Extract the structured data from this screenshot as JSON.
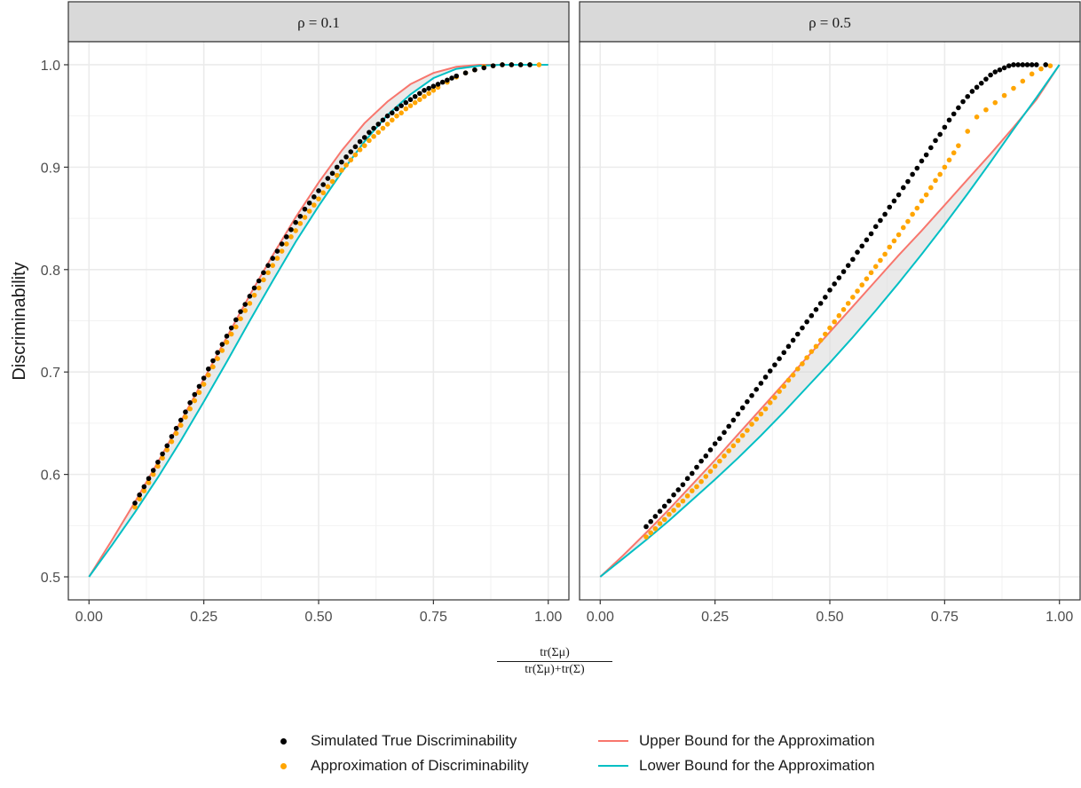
{
  "chart_data": {
    "type": "scatter",
    "ylabel": "Discriminability",
    "xlabel_numerator": "tr(Σμ)",
    "xlabel_denominator": "tr(Σμ)+tr(Σ)",
    "xlim": [
      0.0,
      1.0
    ],
    "ylim": [
      0.5,
      1.0
    ],
    "x_ticks": [
      "0.00",
      "0.25",
      "0.50",
      "0.75",
      "1.00"
    ],
    "y_ticks": [
      "0.5",
      "0.6",
      "0.7",
      "0.8",
      "0.9",
      "1.0"
    ],
    "grid": true,
    "legend_position": "bottom",
    "colors": {
      "simulated": "#000000",
      "approximation": "#FFA500",
      "upper": "#F8766D",
      "lower": "#00BFC4",
      "ribbon": "#d9d9d9",
      "strip": "#d9d9d9"
    },
    "legend": [
      {
        "label": "Simulated True Discriminability",
        "kind": "point",
        "color_key": "simulated"
      },
      {
        "label": "Approximation of Discriminability",
        "kind": "point",
        "color_key": "approximation"
      },
      {
        "label": "Upper Bound for the Approximation",
        "kind": "line",
        "color_key": "upper"
      },
      {
        "label": "Lower Bound for the Approximation",
        "kind": "line",
        "color_key": "lower"
      }
    ],
    "panels": [
      {
        "label": "ρ = 0.1",
        "upper": {
          "x": [
            0.0,
            0.05,
            0.1,
            0.15,
            0.2,
            0.25,
            0.3,
            0.35,
            0.4,
            0.45,
            0.5,
            0.55,
            0.6,
            0.65,
            0.7,
            0.75,
            0.8,
            0.85,
            0.9,
            0.95,
            1.0
          ],
          "y": [
            0.5,
            0.536,
            0.573,
            0.612,
            0.652,
            0.693,
            0.734,
            0.775,
            0.814,
            0.851,
            0.885,
            0.916,
            0.943,
            0.964,
            0.981,
            0.992,
            0.998,
            1.0,
            1.0,
            1.0,
            1.0
          ]
        },
        "lower": {
          "x": [
            0.0,
            0.05,
            0.1,
            0.15,
            0.2,
            0.25,
            0.3,
            0.35,
            0.4,
            0.45,
            0.5,
            0.55,
            0.6,
            0.65,
            0.7,
            0.75,
            0.8,
            0.85,
            0.9,
            0.95,
            1.0
          ],
          "y": [
            0.5,
            0.531,
            0.563,
            0.597,
            0.633,
            0.671,
            0.71,
            0.75,
            0.789,
            0.827,
            0.862,
            0.895,
            0.925,
            0.951,
            0.971,
            0.987,
            0.996,
            0.999,
            1.0,
            1.0,
            1.0
          ]
        },
        "simulated": {
          "x": [
            0.1,
            0.11,
            0.12,
            0.13,
            0.14,
            0.15,
            0.16,
            0.17,
            0.18,
            0.19,
            0.2,
            0.21,
            0.22,
            0.23,
            0.24,
            0.25,
            0.26,
            0.27,
            0.28,
            0.29,
            0.3,
            0.31,
            0.32,
            0.33,
            0.34,
            0.35,
            0.36,
            0.37,
            0.38,
            0.39,
            0.4,
            0.41,
            0.42,
            0.43,
            0.44,
            0.45,
            0.46,
            0.47,
            0.48,
            0.49,
            0.5,
            0.51,
            0.52,
            0.53,
            0.54,
            0.55,
            0.56,
            0.57,
            0.58,
            0.59,
            0.6,
            0.61,
            0.62,
            0.63,
            0.64,
            0.65,
            0.66,
            0.67,
            0.68,
            0.69,
            0.7,
            0.71,
            0.72,
            0.73,
            0.74,
            0.75,
            0.76,
            0.77,
            0.78,
            0.79,
            0.8,
            0.82,
            0.84,
            0.86,
            0.88,
            0.9,
            0.92,
            0.94,
            0.96
          ],
          "y": [
            0.572,
            0.58,
            0.588,
            0.596,
            0.604,
            0.612,
            0.62,
            0.628,
            0.637,
            0.645,
            0.653,
            0.661,
            0.67,
            0.678,
            0.686,
            0.694,
            0.703,
            0.711,
            0.719,
            0.727,
            0.735,
            0.743,
            0.751,
            0.759,
            0.766,
            0.774,
            0.782,
            0.789,
            0.797,
            0.804,
            0.811,
            0.818,
            0.825,
            0.832,
            0.839,
            0.846,
            0.852,
            0.859,
            0.865,
            0.871,
            0.877,
            0.883,
            0.889,
            0.894,
            0.9,
            0.905,
            0.91,
            0.915,
            0.92,
            0.925,
            0.929,
            0.934,
            0.938,
            0.942,
            0.946,
            0.95,
            0.953,
            0.957,
            0.96,
            0.963,
            0.966,
            0.969,
            0.972,
            0.975,
            0.977,
            0.979,
            0.981,
            0.983,
            0.985,
            0.987,
            0.989,
            0.992,
            0.995,
            0.997,
            0.999,
            1.0,
            1.0,
            1.0,
            1.0
          ]
        },
        "approximation": {
          "x": [
            0.1,
            0.11,
            0.12,
            0.13,
            0.14,
            0.15,
            0.16,
            0.17,
            0.18,
            0.19,
            0.2,
            0.21,
            0.22,
            0.23,
            0.24,
            0.25,
            0.26,
            0.27,
            0.28,
            0.29,
            0.3,
            0.31,
            0.32,
            0.33,
            0.34,
            0.35,
            0.36,
            0.37,
            0.38,
            0.39,
            0.4,
            0.41,
            0.42,
            0.43,
            0.44,
            0.45,
            0.46,
            0.47,
            0.48,
            0.49,
            0.5,
            0.51,
            0.52,
            0.53,
            0.54,
            0.55,
            0.56,
            0.57,
            0.58,
            0.59,
            0.6,
            0.61,
            0.62,
            0.63,
            0.64,
            0.65,
            0.66,
            0.67,
            0.68,
            0.69,
            0.7,
            0.71,
            0.72,
            0.73,
            0.74,
            0.75,
            0.76,
            0.78,
            0.8,
            0.82,
            0.84,
            0.86,
            0.88,
            0.9,
            0.92,
            0.94,
            0.96,
            0.98
          ],
          "y": [
            0.568,
            0.576,
            0.584,
            0.592,
            0.6,
            0.608,
            0.616,
            0.624,
            0.632,
            0.64,
            0.648,
            0.656,
            0.664,
            0.672,
            0.68,
            0.688,
            0.697,
            0.705,
            0.713,
            0.721,
            0.729,
            0.737,
            0.744,
            0.752,
            0.76,
            0.767,
            0.775,
            0.782,
            0.79,
            0.797,
            0.804,
            0.811,
            0.818,
            0.825,
            0.832,
            0.838,
            0.845,
            0.851,
            0.857,
            0.863,
            0.869,
            0.875,
            0.881,
            0.886,
            0.892,
            0.897,
            0.902,
            0.907,
            0.912,
            0.917,
            0.921,
            0.926,
            0.93,
            0.934,
            0.938,
            0.942,
            0.946,
            0.95,
            0.953,
            0.957,
            0.96,
            0.963,
            0.966,
            0.969,
            0.972,
            0.975,
            0.978,
            0.983,
            0.988,
            0.992,
            0.995,
            0.998,
            0.999,
            1.0,
            1.0,
            1.0,
            1.0,
            1.0
          ]
        }
      },
      {
        "label": "ρ = 0.5",
        "upper": {
          "x": [
            0.0,
            0.05,
            0.1,
            0.15,
            0.2,
            0.25,
            0.3,
            0.35,
            0.4,
            0.45,
            0.5,
            0.55,
            0.6,
            0.65,
            0.7,
            0.75,
            0.8,
            0.85,
            0.9,
            0.95,
            1.0
          ],
          "y": [
            0.5,
            0.521,
            0.543,
            0.566,
            0.59,
            0.614,
            0.639,
            0.664,
            0.689,
            0.714,
            0.739,
            0.764,
            0.789,
            0.814,
            0.838,
            0.863,
            0.888,
            0.913,
            0.939,
            0.966,
            1.0
          ]
        },
        "lower": {
          "x": [
            0.0,
            0.05,
            0.1,
            0.15,
            0.2,
            0.25,
            0.3,
            0.35,
            0.4,
            0.45,
            0.5,
            0.55,
            0.6,
            0.65,
            0.7,
            0.75,
            0.8,
            0.85,
            0.9,
            0.95,
            1.0
          ],
          "y": [
            0.5,
            0.518,
            0.536,
            0.555,
            0.575,
            0.595,
            0.616,
            0.638,
            0.661,
            0.685,
            0.709,
            0.734,
            0.76,
            0.787,
            0.815,
            0.844,
            0.874,
            0.905,
            0.937,
            0.968,
            1.0
          ]
        },
        "simulated": {
          "x": [
            0.1,
            0.11,
            0.12,
            0.13,
            0.14,
            0.15,
            0.16,
            0.17,
            0.18,
            0.19,
            0.2,
            0.21,
            0.22,
            0.23,
            0.24,
            0.25,
            0.26,
            0.27,
            0.28,
            0.29,
            0.3,
            0.31,
            0.32,
            0.33,
            0.34,
            0.35,
            0.36,
            0.37,
            0.38,
            0.39,
            0.4,
            0.41,
            0.42,
            0.43,
            0.44,
            0.45,
            0.46,
            0.47,
            0.48,
            0.49,
            0.5,
            0.51,
            0.52,
            0.53,
            0.54,
            0.55,
            0.56,
            0.57,
            0.58,
            0.59,
            0.6,
            0.61,
            0.62,
            0.63,
            0.64,
            0.65,
            0.66,
            0.67,
            0.68,
            0.69,
            0.7,
            0.71,
            0.72,
            0.73,
            0.74,
            0.75,
            0.76,
            0.77,
            0.78,
            0.79,
            0.8,
            0.81,
            0.82,
            0.83,
            0.84,
            0.85,
            0.86,
            0.87,
            0.88,
            0.89,
            0.9,
            0.91,
            0.92,
            0.93,
            0.94,
            0.95,
            0.97
          ],
          "y": [
            0.549,
            0.554,
            0.559,
            0.564,
            0.569,
            0.574,
            0.58,
            0.585,
            0.59,
            0.596,
            0.601,
            0.607,
            0.613,
            0.618,
            0.624,
            0.63,
            0.635,
            0.641,
            0.647,
            0.653,
            0.659,
            0.665,
            0.671,
            0.677,
            0.683,
            0.689,
            0.695,
            0.701,
            0.707,
            0.713,
            0.719,
            0.725,
            0.731,
            0.737,
            0.743,
            0.749,
            0.755,
            0.761,
            0.767,
            0.773,
            0.78,
            0.786,
            0.792,
            0.798,
            0.804,
            0.81,
            0.817,
            0.823,
            0.829,
            0.835,
            0.842,
            0.848,
            0.854,
            0.861,
            0.867,
            0.873,
            0.88,
            0.886,
            0.893,
            0.899,
            0.906,
            0.912,
            0.919,
            0.926,
            0.932,
            0.939,
            0.946,
            0.952,
            0.958,
            0.964,
            0.969,
            0.974,
            0.978,
            0.982,
            0.986,
            0.99,
            0.993,
            0.995,
            0.997,
            0.999,
            1.0,
            1.0,
            1.0,
            1.0,
            1.0,
            1.0,
            1.0
          ]
        },
        "approximation": {
          "x": [
            0.1,
            0.11,
            0.12,
            0.13,
            0.14,
            0.15,
            0.16,
            0.17,
            0.18,
            0.19,
            0.2,
            0.21,
            0.22,
            0.23,
            0.24,
            0.25,
            0.26,
            0.27,
            0.28,
            0.29,
            0.3,
            0.31,
            0.32,
            0.33,
            0.34,
            0.35,
            0.36,
            0.37,
            0.38,
            0.39,
            0.4,
            0.41,
            0.42,
            0.43,
            0.44,
            0.45,
            0.46,
            0.47,
            0.48,
            0.49,
            0.5,
            0.51,
            0.52,
            0.53,
            0.54,
            0.55,
            0.56,
            0.57,
            0.58,
            0.59,
            0.6,
            0.61,
            0.62,
            0.63,
            0.64,
            0.65,
            0.66,
            0.67,
            0.68,
            0.69,
            0.7,
            0.71,
            0.72,
            0.73,
            0.74,
            0.75,
            0.76,
            0.77,
            0.78,
            0.8,
            0.82,
            0.84,
            0.86,
            0.88,
            0.9,
            0.92,
            0.94,
            0.96,
            0.98
          ],
          "y": [
            0.539,
            0.543,
            0.547,
            0.552,
            0.556,
            0.561,
            0.565,
            0.57,
            0.574,
            0.579,
            0.584,
            0.588,
            0.593,
            0.598,
            0.603,
            0.608,
            0.613,
            0.618,
            0.623,
            0.628,
            0.633,
            0.638,
            0.643,
            0.649,
            0.654,
            0.659,
            0.664,
            0.67,
            0.675,
            0.681,
            0.686,
            0.692,
            0.697,
            0.703,
            0.708,
            0.714,
            0.72,
            0.725,
            0.731,
            0.737,
            0.743,
            0.749,
            0.755,
            0.761,
            0.767,
            0.773,
            0.779,
            0.785,
            0.791,
            0.797,
            0.803,
            0.809,
            0.815,
            0.822,
            0.828,
            0.834,
            0.841,
            0.847,
            0.854,
            0.86,
            0.867,
            0.873,
            0.88,
            0.887,
            0.893,
            0.9,
            0.907,
            0.914,
            0.921,
            0.935,
            0.949,
            0.956,
            0.963,
            0.97,
            0.977,
            0.984,
            0.991,
            0.996,
            0.999
          ]
        }
      }
    ]
  }
}
